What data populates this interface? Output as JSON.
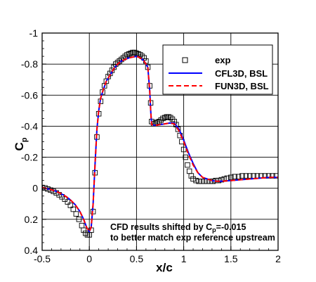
{
  "chart_data": {
    "type": "line",
    "xlabel": "x/c",
    "ylabel": "C",
    "ylabel_subscript": "p",
    "xlim": [
      -0.5,
      2
    ],
    "ylim": [
      0.4,
      -1
    ],
    "y_inverted": true,
    "grid": true,
    "x_ticks": [
      -0.5,
      0,
      0.5,
      1,
      1.5,
      2
    ],
    "y_ticks": [
      -1,
      -0.8,
      -0.6,
      -0.4,
      -0.2,
      0,
      0.2,
      0.4
    ],
    "x_tick_labels": [
      "-0.5",
      "0",
      "0.5",
      "1",
      "1.5",
      "2"
    ],
    "y_tick_labels": [
      "-1",
      "-0.8",
      "-0.6",
      "-0.4",
      "-0.2",
      "0",
      "0.2",
      "0.4"
    ],
    "legend_position": "top-right",
    "annotation": [
      "CFD results shifted by C",
      "p",
      "=-0.015",
      "to better match exp reference upstream"
    ],
    "series": [
      {
        "name": "exp",
        "style": "markers",
        "marker": "square-open",
        "color": "#000000",
        "x": [
          -0.5,
          -0.47,
          -0.44,
          -0.41,
          -0.38,
          -0.35,
          -0.32,
          -0.29,
          -0.26,
          -0.23,
          -0.2,
          -0.17,
          -0.14,
          -0.11,
          -0.08,
          -0.06,
          -0.04,
          -0.02,
          0.0,
          0.02,
          0.04,
          0.06,
          0.08,
          0.1,
          0.12,
          0.14,
          0.16,
          0.18,
          0.2,
          0.22,
          0.24,
          0.26,
          0.28,
          0.3,
          0.32,
          0.34,
          0.36,
          0.38,
          0.4,
          0.42,
          0.44,
          0.46,
          0.48,
          0.5,
          0.52,
          0.54,
          0.56,
          0.58,
          0.6,
          0.62,
          0.64,
          0.65,
          0.66,
          0.68,
          0.7,
          0.72,
          0.74,
          0.76,
          0.78,
          0.8,
          0.82,
          0.84,
          0.86,
          0.88,
          0.9,
          0.92,
          0.94,
          0.96,
          0.98,
          1.0,
          1.02,
          1.04,
          1.06,
          1.08,
          1.1,
          1.13,
          1.16,
          1.19,
          1.22,
          1.25,
          1.28,
          1.31,
          1.34,
          1.37,
          1.4,
          1.43,
          1.46,
          1.5,
          1.54,
          1.58,
          1.62,
          1.66,
          1.7,
          1.74,
          1.78,
          1.82,
          1.86,
          1.9,
          1.94,
          1.98
        ],
        "y": [
          -0.005,
          -0.002,
          0.005,
          0.012,
          0.02,
          0.03,
          0.042,
          0.055,
          0.07,
          0.088,
          0.11,
          0.135,
          0.165,
          0.2,
          0.24,
          0.27,
          0.29,
          0.3,
          0.3,
          0.27,
          0.15,
          -0.1,
          -0.33,
          -0.48,
          -0.56,
          -0.62,
          -0.66,
          -0.69,
          -0.72,
          -0.74,
          -0.76,
          -0.78,
          -0.8,
          -0.81,
          -0.82,
          -0.83,
          -0.84,
          -0.85,
          -0.86,
          -0.865,
          -0.87,
          -0.875,
          -0.875,
          -0.87,
          -0.865,
          -0.86,
          -0.85,
          -0.84,
          -0.82,
          -0.78,
          -0.66,
          -0.55,
          -0.43,
          -0.415,
          -0.42,
          -0.425,
          -0.43,
          -0.44,
          -0.45,
          -0.455,
          -0.46,
          -0.46,
          -0.455,
          -0.445,
          -0.43,
          -0.41,
          -0.38,
          -0.34,
          -0.3,
          -0.25,
          -0.2,
          -0.15,
          -0.11,
          -0.08,
          -0.06,
          -0.05,
          -0.045,
          -0.045,
          -0.045,
          -0.045,
          -0.045,
          -0.045,
          -0.05,
          -0.05,
          -0.055,
          -0.06,
          -0.065,
          -0.07,
          -0.075,
          -0.075,
          -0.08,
          -0.08,
          -0.08,
          -0.08,
          -0.08,
          -0.08,
          -0.08,
          -0.08,
          -0.08,
          -0.08
        ]
      },
      {
        "name": "CFL3D, BSL",
        "style": "solid",
        "color": "#0000ff",
        "x": [
          -0.5,
          -0.45,
          -0.4,
          -0.35,
          -0.3,
          -0.25,
          -0.2,
          -0.15,
          -0.1,
          -0.06,
          -0.03,
          0.0,
          0.02,
          0.04,
          0.06,
          0.08,
          0.1,
          0.12,
          0.15,
          0.18,
          0.22,
          0.26,
          0.3,
          0.34,
          0.38,
          0.42,
          0.46,
          0.5,
          0.54,
          0.58,
          0.62,
          0.64,
          0.65,
          0.66,
          0.7,
          0.75,
          0.8,
          0.85,
          0.9,
          0.95,
          1.0,
          1.05,
          1.1,
          1.15,
          1.2,
          1.25,
          1.3,
          1.35,
          1.4,
          1.5,
          1.6,
          1.7,
          1.8,
          1.9,
          2.0
        ],
        "y": [
          -0.005,
          0.002,
          0.01,
          0.02,
          0.035,
          0.052,
          0.075,
          0.105,
          0.15,
          0.2,
          0.25,
          0.28,
          0.25,
          0.1,
          -0.15,
          -0.38,
          -0.5,
          -0.58,
          -0.64,
          -0.69,
          -0.73,
          -0.77,
          -0.8,
          -0.82,
          -0.83,
          -0.84,
          -0.845,
          -0.85,
          -0.84,
          -0.82,
          -0.78,
          -0.63,
          -0.5,
          -0.41,
          -0.405,
          -0.41,
          -0.415,
          -0.42,
          -0.42,
          -0.38,
          -0.31,
          -0.23,
          -0.16,
          -0.1,
          -0.07,
          -0.06,
          -0.05,
          -0.045,
          -0.045,
          -0.05,
          -0.055,
          -0.06,
          -0.065,
          -0.07,
          -0.07
        ]
      },
      {
        "name": "FUN3D, BSL",
        "style": "dashed",
        "color": "#ff0000",
        "x": [
          -0.5,
          -0.45,
          -0.4,
          -0.35,
          -0.3,
          -0.25,
          -0.2,
          -0.15,
          -0.1,
          -0.06,
          -0.03,
          0.0,
          0.02,
          0.04,
          0.06,
          0.08,
          0.1,
          0.12,
          0.15,
          0.18,
          0.22,
          0.26,
          0.3,
          0.34,
          0.38,
          0.42,
          0.46,
          0.5,
          0.54,
          0.58,
          0.62,
          0.64,
          0.65,
          0.66,
          0.7,
          0.75,
          0.8,
          0.85,
          0.9,
          0.95,
          1.0,
          1.05,
          1.1,
          1.15,
          1.2,
          1.25,
          1.3,
          1.35,
          1.4,
          1.5,
          1.6,
          1.7,
          1.8,
          1.9,
          2.0
        ],
        "y": [
          -0.005,
          0.002,
          0.01,
          0.02,
          0.035,
          0.052,
          0.075,
          0.105,
          0.15,
          0.2,
          0.25,
          0.28,
          0.25,
          0.1,
          -0.15,
          -0.38,
          -0.5,
          -0.58,
          -0.64,
          -0.69,
          -0.73,
          -0.77,
          -0.8,
          -0.82,
          -0.83,
          -0.84,
          -0.845,
          -0.85,
          -0.84,
          -0.82,
          -0.78,
          -0.63,
          -0.5,
          -0.41,
          -0.405,
          -0.41,
          -0.415,
          -0.42,
          -0.415,
          -0.37,
          -0.3,
          -0.22,
          -0.15,
          -0.1,
          -0.07,
          -0.06,
          -0.05,
          -0.045,
          -0.045,
          -0.05,
          -0.055,
          -0.06,
          -0.065,
          -0.07,
          -0.07
        ]
      }
    ]
  }
}
